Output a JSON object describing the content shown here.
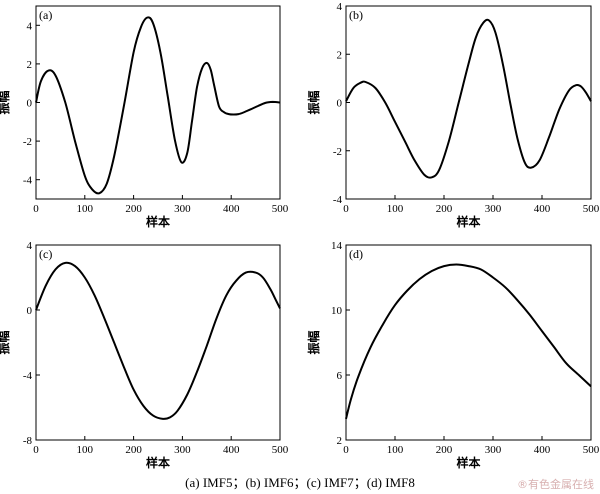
{
  "chart_data": [
    {
      "type": "line",
      "panel_label": "(a)",
      "xlabel": "样本",
      "ylabel": "振幅",
      "xlim": [
        0,
        500
      ],
      "ylim": [
        -5,
        5
      ],
      "xticks": [
        "0",
        "100",
        "200",
        "300",
        "400",
        "500"
      ],
      "yticks": [
        "-4",
        "-2",
        "0",
        "2",
        "4"
      ],
      "ytick_values": [
        -4,
        -2,
        0,
        2,
        4
      ],
      "x": [
        0,
        10,
        25,
        40,
        60,
        80,
        100,
        115,
        130,
        145,
        160,
        180,
        200,
        215,
        228,
        240,
        255,
        270,
        285,
        298,
        310,
        320,
        330,
        340,
        350,
        358,
        365,
        375,
        385,
        395,
        405,
        415,
        425,
        440,
        455,
        470,
        485,
        500
      ],
      "y": [
        0.0,
        1.1,
        1.65,
        1.4,
        0.0,
        -2.0,
        -3.8,
        -4.5,
        -4.7,
        -4.2,
        -2.8,
        -0.2,
        2.6,
        3.9,
        4.4,
        4.1,
        2.6,
        0.3,
        -2.0,
        -3.1,
        -2.6,
        -0.9,
        0.8,
        1.75,
        2.05,
        1.7,
        0.9,
        -0.2,
        -0.5,
        -0.6,
        -0.62,
        -0.6,
        -0.52,
        -0.35,
        -0.18,
        -0.02,
        0.03,
        0.0
      ]
    },
    {
      "type": "line",
      "panel_label": "(b)",
      "xlabel": "样本",
      "ylabel": "振幅",
      "xlim": [
        0,
        500
      ],
      "ylim": [
        -4,
        4
      ],
      "xticks": [
        "0",
        "100",
        "200",
        "300",
        "400",
        "500"
      ],
      "yticks": [
        "-4",
        "-2",
        "0",
        "2",
        "4"
      ],
      "ytick_values": [
        -4,
        -2,
        0,
        2,
        4
      ],
      "x": [
        0,
        15,
        30,
        40,
        60,
        80,
        100,
        120,
        140,
        160,
        175,
        190,
        210,
        230,
        250,
        265,
        280,
        292,
        305,
        320,
        335,
        350,
        365,
        378,
        395,
        415,
        435,
        455,
        470,
        480,
        490,
        500
      ],
      "y": [
        0.05,
        0.6,
        0.82,
        0.85,
        0.6,
        0.0,
        -0.8,
        -1.6,
        -2.4,
        -3.0,
        -3.1,
        -2.8,
        -1.6,
        0.0,
        1.6,
        2.7,
        3.3,
        3.4,
        2.9,
        1.6,
        0.0,
        -1.5,
        -2.5,
        -2.7,
        -2.4,
        -1.4,
        -0.3,
        0.5,
        0.72,
        0.66,
        0.4,
        0.05
      ]
    },
    {
      "type": "line",
      "panel_label": "(c)",
      "xlabel": "样本",
      "ylabel": "振幅",
      "xlim": [
        0,
        500
      ],
      "ylim": [
        -8,
        4
      ],
      "xticks": [
        "0",
        "100",
        "200",
        "300",
        "400",
        "500"
      ],
      "yticks": [
        "-8",
        "-4",
        "0",
        "4"
      ],
      "ytick_values": [
        -8,
        -4,
        0,
        4
      ],
      "x": [
        0,
        20,
        40,
        60,
        80,
        100,
        120,
        140,
        160,
        180,
        200,
        220,
        240,
        260,
        275,
        290,
        310,
        330,
        350,
        370,
        390,
        410,
        430,
        450,
        465,
        480,
        490,
        500
      ],
      "y": [
        0.0,
        1.5,
        2.5,
        2.9,
        2.7,
        2.0,
        0.9,
        -0.5,
        -2.0,
        -3.5,
        -4.9,
        -5.9,
        -6.5,
        -6.7,
        -6.6,
        -6.2,
        -5.2,
        -3.8,
        -2.2,
        -0.5,
        0.9,
        1.8,
        2.3,
        2.3,
        2.0,
        1.3,
        0.7,
        0.1
      ]
    },
    {
      "type": "line",
      "panel_label": "(d)",
      "xlabel": "样本",
      "ylabel": "振幅",
      "xlim": [
        0,
        500
      ],
      "ylim": [
        2,
        14
      ],
      "xticks": [
        "0",
        "100",
        "200",
        "300",
        "400",
        "500"
      ],
      "yticks": [
        "2",
        "6",
        "10",
        "14"
      ],
      "ytick_values": [
        2,
        6,
        10,
        14
      ],
      "x": [
        0,
        10,
        25,
        50,
        75,
        100,
        125,
        150,
        175,
        200,
        225,
        250,
        275,
        300,
        325,
        350,
        375,
        400,
        425,
        450,
        475,
        500
      ],
      "y": [
        3.3,
        4.5,
        5.9,
        7.7,
        9.1,
        10.3,
        11.2,
        11.9,
        12.4,
        12.7,
        12.8,
        12.7,
        12.5,
        12.0,
        11.4,
        10.6,
        9.7,
        8.7,
        7.7,
        6.7,
        6.0,
        5.3
      ]
    }
  ],
  "caption": "(a) IMF5；(b) IMF6；(c) IMF7；(d) IMF8",
  "watermark": "®有色金属在线"
}
